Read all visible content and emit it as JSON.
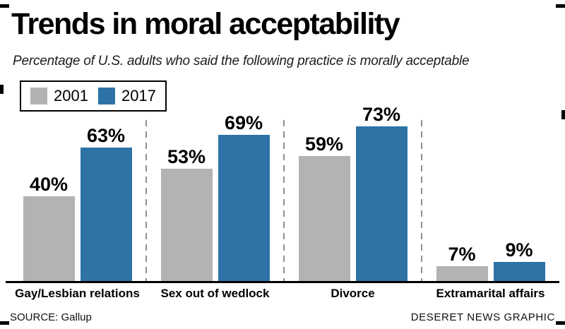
{
  "chart_data": {
    "type": "bar",
    "title": "Trends in moral acceptability",
    "subtitle": "Percentage of U.S. adults who said the following practice is morally acceptable",
    "categories": [
      "Gay/Lesbian relations",
      "Sex out of wedlock",
      "Divorce",
      "Extramarital affairs"
    ],
    "series": [
      {
        "name": "2001",
        "color": "#b1b3b5",
        "values": [
          40,
          53,
          59,
          7
        ]
      },
      {
        "name": "2017",
        "color": "#2d73a6",
        "values": [
          63,
          69,
          73,
          9
        ]
      }
    ],
    "value_suffix": "%",
    "ylim": [
      0,
      80
    ],
    "grid": false,
    "legend_position": "top-left",
    "source": "SOURCE: Gallup",
    "credit": "DESERET NEWS GRAPHIC"
  }
}
